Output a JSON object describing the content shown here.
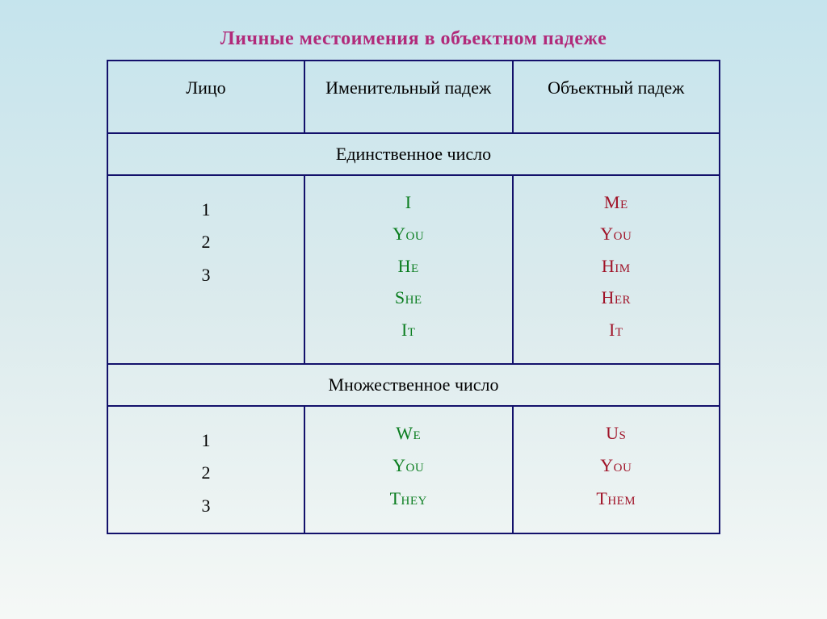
{
  "title": "Личные местоимения в объектном падеже",
  "title_color": "#b12a7a",
  "table": {
    "border_color": "#13116b",
    "columns": [
      {
        "label": "Лицо"
      },
      {
        "label": "Именительный падеж"
      },
      {
        "label": "Объектный падеж"
      }
    ],
    "sections": [
      {
        "header": "Единственное число",
        "persons": [
          "1",
          "2",
          "3"
        ],
        "nominative": [
          "I",
          "You",
          "He",
          "She",
          "It"
        ],
        "objective": [
          "Me",
          "You",
          "Him",
          "Her",
          "It"
        ]
      },
      {
        "header": "Множественное число",
        "persons": [
          "1",
          "2",
          "3"
        ],
        "nominative": [
          "We",
          "You",
          "They"
        ],
        "objective": [
          "Us",
          "You",
          "Them"
        ]
      }
    ],
    "nominative_color": "#0a7d1f",
    "objective_color": "#a01328",
    "person_color": "#000000"
  }
}
